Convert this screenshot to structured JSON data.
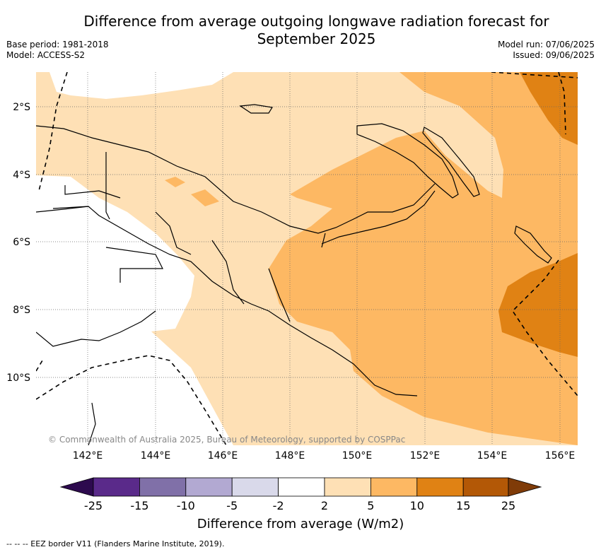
{
  "title_line1": "Difference from average outgoing longwave radiation forecast for",
  "title_line2": "September 2025",
  "meta_left": {
    "base_period": "Base period: 1981-2018",
    "model": "Model: ACCESS-S2"
  },
  "meta_right": {
    "model_run": "Model run: 07/06/2025",
    "issued": "Issued: 09/06/2025"
  },
  "lat_ticks": [
    "2°S",
    "4°S",
    "6°S",
    "8°S",
    "10°S"
  ],
  "lon_ticks": [
    "142°E",
    "144°E",
    "146°E",
    "148°E",
    "150°E",
    "152°E",
    "154°E",
    "156°E"
  ],
  "copyright": "© Commonwealth of Australia 2025, Bureau of Meteorology, supported by COSPPac",
  "colorbar": {
    "ticks": [
      "-25",
      "-15",
      "-10",
      "-5",
      "-2",
      "2",
      "5",
      "10",
      "15",
      "25"
    ],
    "colors": [
      "#2d0a4e",
      "#5a2a8a",
      "#8070a8",
      "#b2a9d2",
      "#d9d9ea",
      "#ffffff",
      "#fee0b5",
      "#fdb863",
      "#e08214",
      "#b35806",
      "#7f3b08"
    ],
    "label": "Difference from average (W/m2)"
  },
  "footer": "--  --  -- EEZ border V11 (Flanders Marine Institute, 2019)."
}
